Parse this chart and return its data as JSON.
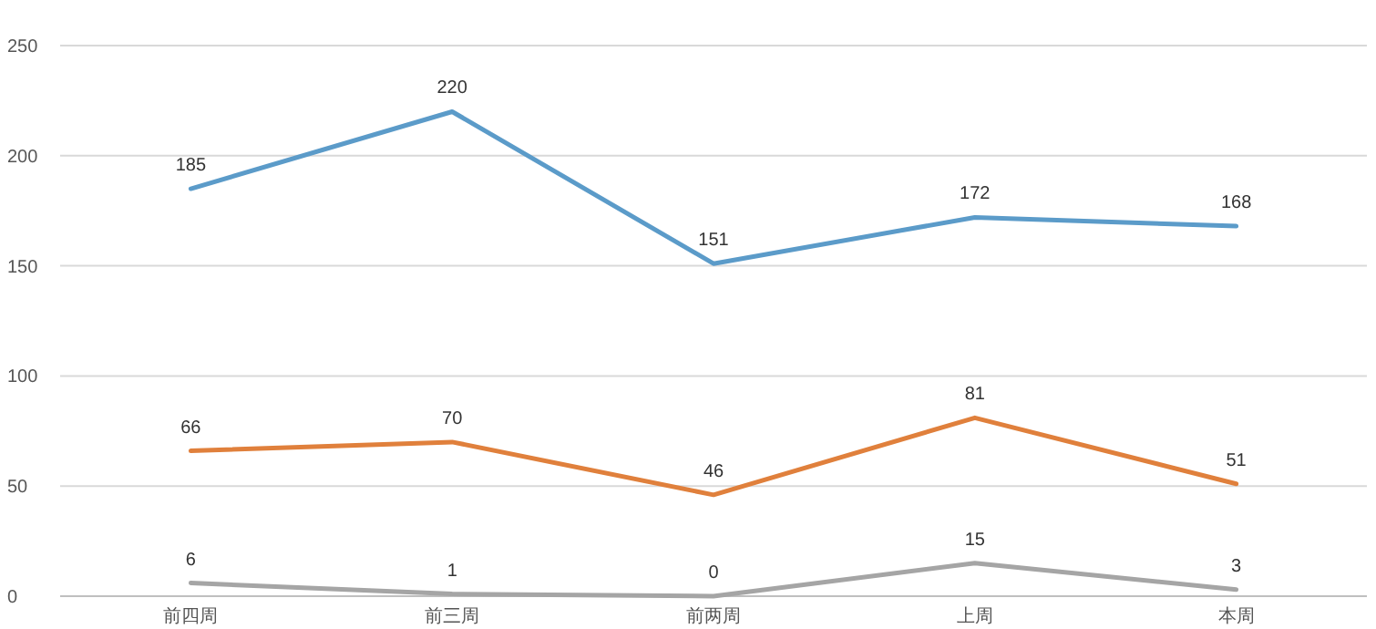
{
  "chart_data": {
    "type": "line",
    "categories": [
      "前四周",
      "前三周",
      "前两周",
      "上周",
      "本周"
    ],
    "series": [
      {
        "color": "#5b9bc9",
        "values": [
          185,
          220,
          151,
          172,
          168
        ]
      },
      {
        "color": "#e0803c",
        "values": [
          66,
          70,
          46,
          81,
          51
        ]
      },
      {
        "color": "#a5a5a5",
        "values": [
          6,
          1,
          0,
          15,
          3
        ]
      }
    ],
    "ylim": [
      0,
      250
    ],
    "yticks": [
      0,
      50,
      100,
      150,
      200,
      250
    ],
    "grid": "y",
    "data_labels": true,
    "marker": "none",
    "line_style": "solid"
  }
}
